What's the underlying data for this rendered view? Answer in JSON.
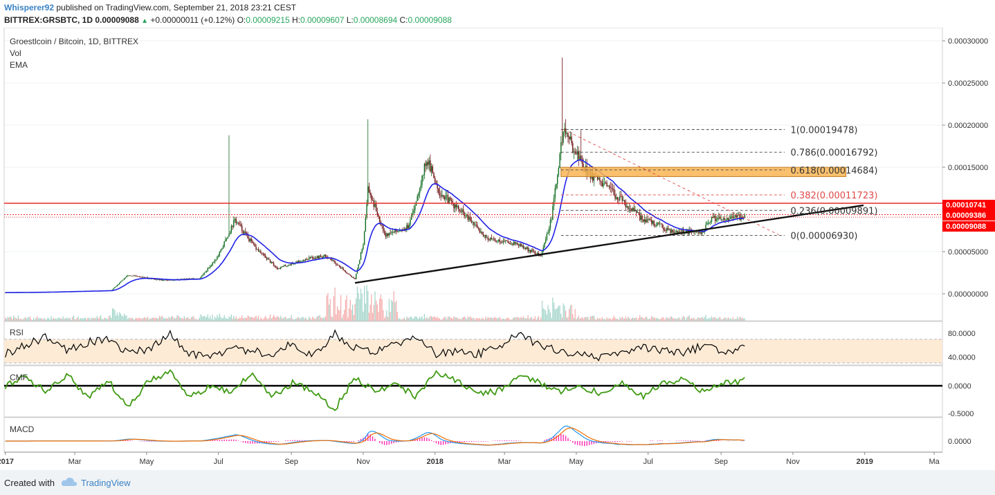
{
  "header": {
    "user": "Whisperer92",
    "published": "published on TradingView.com, September 21, 2018 23:21 CEST",
    "symbol": "BITTREX:GRSBTC, 1D",
    "last": "0.00009088",
    "change": "+0.00000011 (+0.12%)",
    "o_label": "O:",
    "o": "0.00009215",
    "h_label": "H:",
    "h": "0.00009607",
    "l_label": "L:",
    "l": "0.00008694",
    "c_label": "C:",
    "c": "0.00009088"
  },
  "legend": {
    "title": "Groestlcoin / Bitcoin, 1D, BITTREX",
    "vol": "Vol",
    "ema": "EMA"
  },
  "footer": {
    "created": "Created with",
    "brand": "TradingView"
  },
  "colors": {
    "ema": "#1f22e6",
    "up": "#0e6b1e",
    "down": "#6b0e0e",
    "rsi_line": "#000000",
    "rsi_band": "#fdebd6",
    "cmf_line": "#3f9a13",
    "macd_line": "#2196f3",
    "signal_line": "#ef6c00",
    "hist": "#ff2bb1",
    "resistance": "#e82a2a",
    "fib_zone": "#f9b553"
  },
  "chart_data": [
    {
      "type": "candlestick",
      "title": "Groestlcoin / Bitcoin, 1D, BITTREX",
      "x_ticks": [
        "2017",
        "Mar",
        "May",
        "Jul",
        "Sep",
        "Nov",
        "2018",
        "Mar",
        "May",
        "Jul",
        "Sep",
        "Nov",
        "2019",
        "Ma"
      ],
      "y_ticks": [
        "0.00030000",
        "0.00025000",
        "0.00020000",
        "0.00015000",
        "0.00010000",
        "0.00005000",
        "0.00000000"
      ],
      "ylim": [
        0,
        0.0003
      ],
      "close_path": [
        [
          "2017-01-01",
          1.5e-06
        ],
        [
          "2017-02-01",
          2e-06
        ],
        [
          "2017-03-01",
          3e-06
        ],
        [
          "2017-04-01",
          4e-06
        ],
        [
          "2017-04-15",
          2.2e-05
        ],
        [
          "2017-05-15",
          1.6e-05
        ],
        [
          "2017-06-15",
          1.8e-05
        ],
        [
          "2017-07-01",
          4.5e-05
        ],
        [
          "2017-07-15",
          8.8e-05
        ],
        [
          "2017-08-01",
          5.5e-05
        ],
        [
          "2017-08-20",
          3e-05
        ],
        [
          "2017-09-15",
          4.2e-05
        ],
        [
          "2017-10-01",
          4.5e-05
        ],
        [
          "2017-10-25",
          1.7e-05
        ],
        [
          "2017-11-01",
          6e-05
        ],
        [
          "2017-11-05",
          0.000125
        ],
        [
          "2017-11-20",
          7e-05
        ],
        [
          "2017-12-10",
          8e-05
        ],
        [
          "2017-12-25",
          0.00016
        ],
        [
          "2018-01-05",
          0.00012
        ],
        [
          "2018-01-25",
          9.5e-05
        ],
        [
          "2018-02-15",
          6.5e-05
        ],
        [
          "2018-03-10",
          6e-05
        ],
        [
          "2018-04-01",
          4.5e-05
        ],
        [
          "2018-04-10",
          9e-05
        ],
        [
          "2018-04-20",
          0.000195
        ],
        [
          "2018-05-10",
          0.000145
        ],
        [
          "2018-06-01",
          0.00012
        ],
        [
          "2018-06-25",
          9e-05
        ],
        [
          "2018-07-20",
          7.5e-05
        ],
        [
          "2018-08-15",
          7.2e-05
        ],
        [
          "2018-08-25",
          9e-05
        ],
        [
          "2018-09-21",
          9.088e-05
        ]
      ],
      "spikes": [
        {
          "date": "2017-07-10",
          "high": 0.000188
        },
        {
          "date": "2017-11-05",
          "high": 0.000207
        },
        {
          "date": "2018-04-19",
          "high": 0.00028
        },
        {
          "date": "2018-05-05",
          "high": 0.000194
        }
      ],
      "price_labels": [
        "0.00010741",
        "0.00009386",
        "0.00009088"
      ],
      "resistance_lines": [
        0.00010741,
        9.386e-05,
        9.088e-05
      ],
      "support_trendline": [
        [
          "2017-10-25",
          1.3e-05
        ],
        [
          "2018-12-31",
          0.000105
        ]
      ],
      "fib_retracement": {
        "levels": [
          {
            "label": "1(0.00019478)",
            "value": 0.00019478
          },
          {
            "label": "0.786(0.00016792)",
            "value": 0.00016792
          },
          {
            "label": "0.618(0.00014684)",
            "value": 0.00014684
          },
          {
            "label": "0.382(0.00011723)",
            "value": 0.00011723
          },
          {
            "label": "0.236(0.00009891)",
            "value": 9.891e-05
          },
          {
            "label": "0(0.00006930)",
            "value": 6.93e-05
          }
        ],
        "highlight_zone": [
          0.000139,
          0.00015
        ]
      }
    },
    {
      "type": "line",
      "title": "RSI",
      "y_ticks": [
        "80.0000",
        "40.0000"
      ],
      "band": [
        30,
        70
      ],
      "values_approx": [
        45,
        60,
        75,
        50,
        65,
        70,
        45,
        55,
        80,
        45,
        40,
        55,
        50,
        45,
        65,
        40,
        80,
        55,
        50,
        60,
        75,
        45,
        50,
        45,
        55,
        80,
        60,
        50,
        45,
        40,
        45,
        55,
        50,
        45,
        60,
        50,
        55
      ]
    },
    {
      "type": "line",
      "title": "CMF",
      "y_ticks": [
        "0.0000",
        "-0.5000"
      ],
      "values_approx": [
        0.0,
        0.15,
        -0.1,
        0.2,
        -0.2,
        0.1,
        -0.4,
        0.1,
        0.25,
        -0.2,
        0.0,
        -0.1,
        0.2,
        -0.2,
        0.05,
        -0.1,
        -0.45,
        0.15,
        -0.1,
        0.05,
        -0.2,
        0.25,
        0.1,
        -0.15,
        -0.1,
        0.2,
        0.05,
        -0.1,
        0.0,
        -0.15,
        0.1,
        -0.2,
        0.05,
        0.1,
        -0.1,
        0.05,
        0.1
      ]
    },
    {
      "type": "line",
      "title": "MACD",
      "y_ticks": [
        "0.0000"
      ]
    }
  ]
}
